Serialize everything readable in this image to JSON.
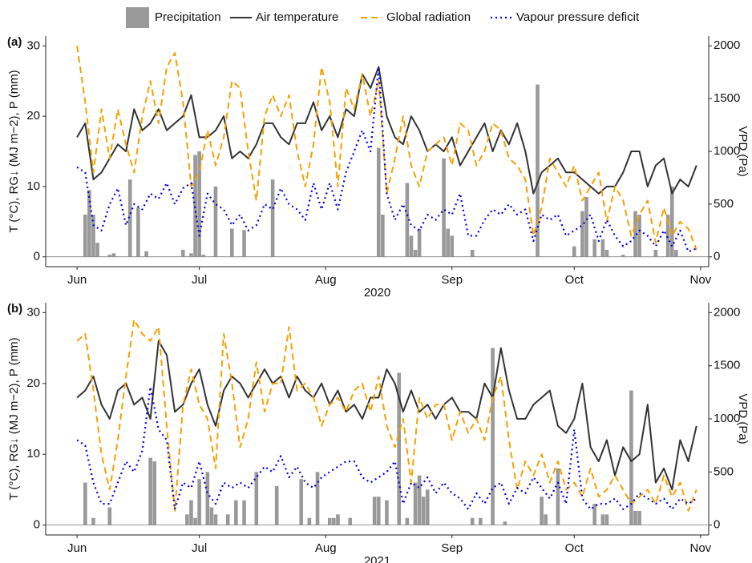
{
  "legend_source": 0,
  "chart_data": [
    {
      "type": "line",
      "panel_label": "(a)",
      "xlabel": "2020",
      "ylabel": "T (°C), RG↓ (MJ m−2), P (mm)",
      "y2label": "VPD (Pa)",
      "xlim": [
        -7.7,
        155
      ],
      "xticks": [
        {
          "value": 0,
          "label": "Jun"
        },
        {
          "value": 30,
          "label": "Jul"
        },
        {
          "value": 61,
          "label": "Aug"
        },
        {
          "value": 92,
          "label": "Sep"
        },
        {
          "value": 122,
          "label": "Oct"
        },
        {
          "value": 153,
          "label": "Nov"
        }
      ],
      "ylim": [
        -1.4,
        31.4
      ],
      "yticks": [
        0,
        10,
        20,
        30
      ],
      "y2lim": [
        -93,
        2093
      ],
      "y2ticks": [
        0,
        500,
        1000,
        1500,
        2000
      ],
      "x": [
        0,
        2,
        4,
        6,
        8,
        10,
        12,
        14,
        16,
        18,
        20,
        22,
        24,
        26,
        28,
        30,
        32,
        34,
        36,
        38,
        40,
        42,
        44,
        46,
        48,
        50,
        52,
        54,
        56,
        58,
        60,
        62,
        64,
        66,
        68,
        70,
        72,
        74,
        76,
        78,
        80,
        82,
        84,
        86,
        88,
        90,
        92,
        94,
        96,
        98,
        100,
        102,
        104,
        106,
        108,
        110,
        112,
        114,
        116,
        118,
        120,
        122,
        124,
        126,
        128,
        130,
        132,
        134,
        136,
        138,
        140,
        142,
        144,
        146,
        148,
        150,
        152
      ],
      "series": [
        {
          "name": "Precipitation",
          "type": "bar",
          "color": "#999999",
          "x": [
            2,
            3,
            4,
            5,
            8,
            9,
            13,
            15,
            17,
            26,
            28,
            29,
            30,
            31,
            34,
            38,
            41,
            48,
            74,
            75,
            81,
            82,
            83,
            84,
            90,
            91,
            92,
            97,
            113,
            122,
            124,
            125,
            127,
            129,
            130,
            134,
            137,
            138,
            142,
            145,
            146,
            147
          ],
          "values": [
            6,
            9.5,
            6,
            2,
            0.3,
            0.5,
            11,
            7,
            0.8,
            1,
            0.5,
            14.5,
            15,
            0.3,
            10,
            4,
            3.8,
            11,
            15.5,
            6,
            10.5,
            3,
            1,
            4,
            14,
            4,
            3,
            1,
            24.5,
            1.5,
            6.5,
            8.5,
            2.5,
            2.5,
            1,
            0.3,
            6.5,
            6,
            1,
            6,
            10,
            1
          ]
        },
        {
          "name": "Air temperature",
          "color": "#333333",
          "dash": "solid",
          "values": [
            17,
            19,
            11,
            12,
            14,
            16,
            15,
            21,
            18,
            19,
            21,
            18,
            19,
            20,
            23,
            17,
            17,
            18,
            20,
            14,
            15,
            14,
            16,
            19,
            19,
            17,
            16,
            19,
            19,
            22,
            18,
            20,
            17,
            21,
            20,
            26,
            24,
            27,
            20,
            17,
            16,
            20,
            18,
            15,
            16,
            15,
            17,
            13,
            15,
            17,
            19,
            15,
            18,
            16,
            19,
            15,
            9,
            12,
            13,
            14,
            12,
            12,
            11,
            10,
            9,
            10,
            10,
            12,
            15,
            15,
            10,
            13,
            14,
            9,
            11,
            10,
            13
          ]
        },
        {
          "name": "Global radiation",
          "color": "#f5a100",
          "dash": "dashed",
          "values": [
            30,
            22,
            12,
            21,
            14,
            21,
            16,
            12,
            20,
            25,
            19,
            27,
            29,
            22,
            10,
            12,
            18,
            13,
            17,
            25,
            24,
            15,
            8,
            20,
            23,
            20,
            23,
            15,
            10,
            16,
            27,
            22,
            10,
            24,
            21,
            26,
            20,
            25,
            9,
            14,
            20,
            13,
            10,
            15,
            16,
            17,
            13,
            19,
            18,
            13,
            15,
            19,
            18,
            14,
            13,
            11,
            3,
            7,
            14,
            12,
            10,
            13,
            8,
            10,
            12,
            5,
            10,
            8,
            3,
            6,
            8,
            2,
            7,
            3,
            5,
            4,
            1
          ]
        },
        {
          "name": "Vapour pressure deficit",
          "color": "#0000dd",
          "dash": "dotted",
          "axis": "y2",
          "values": [
            850,
            800,
            300,
            250,
            500,
            650,
            300,
            500,
            450,
            600,
            550,
            700,
            500,
            650,
            700,
            200,
            600,
            500,
            450,
            300,
            400,
            250,
            300,
            500,
            450,
            650,
            500,
            450,
            350,
            700,
            450,
            700,
            450,
            800,
            1000,
            1200,
            1000,
            1800,
            600,
            350,
            500,
            300,
            250,
            400,
            350,
            450,
            400,
            600,
            200,
            200,
            350,
            450,
            400,
            500,
            400,
            450,
            150,
            400,
            350,
            400,
            200,
            250,
            300,
            400,
            150,
            350,
            200,
            100,
            150,
            250,
            200,
            100,
            250,
            100,
            250,
            50,
            80
          ]
        }
      ]
    },
    {
      "type": "line",
      "panel_label": "(b)",
      "xlabel": "2021",
      "ylabel": "T (°C), RG↓ (MJ m−2), P (mm)",
      "y2label": "VPD (Pa)",
      "xlim": [
        -7.7,
        155
      ],
      "xticks": [
        {
          "value": 0,
          "label": "Jun"
        },
        {
          "value": 30,
          "label": "Jul"
        },
        {
          "value": 61,
          "label": "Aug"
        },
        {
          "value": 92,
          "label": "Sep"
        },
        {
          "value": 122,
          "label": "Oct"
        },
        {
          "value": 153,
          "label": "Nov"
        }
      ],
      "ylim": [
        -1.4,
        31.4
      ],
      "yticks": [
        0,
        10,
        20,
        30
      ],
      "y2lim": [
        -93,
        2093
      ],
      "y2ticks": [
        0,
        500,
        1000,
        1500,
        2000
      ],
      "x": [
        0,
        2,
        4,
        6,
        8,
        10,
        12,
        14,
        16,
        18,
        20,
        22,
        24,
        26,
        28,
        30,
        32,
        34,
        36,
        38,
        40,
        42,
        44,
        46,
        48,
        50,
        52,
        54,
        56,
        58,
        60,
        62,
        64,
        66,
        68,
        70,
        72,
        74,
        76,
        78,
        80,
        82,
        84,
        86,
        88,
        90,
        92,
        94,
        96,
        98,
        100,
        102,
        104,
        106,
        108,
        110,
        112,
        114,
        116,
        118,
        120,
        122,
        124,
        126,
        128,
        130,
        132,
        134,
        136,
        138,
        140,
        142,
        144,
        146,
        148,
        150,
        152
      ],
      "series": [
        {
          "type": "bar",
          "color": "#999999",
          "x": [
            2,
            4,
            8,
            18,
            19,
            27,
            28,
            29,
            30,
            32,
            33,
            34,
            37,
            39,
            41,
            44,
            49,
            55,
            57,
            59,
            62,
            63,
            64,
            67,
            73,
            74,
            76,
            79,
            81,
            83,
            84,
            85,
            86,
            97,
            99,
            102,
            105,
            114,
            115,
            118,
            127,
            129,
            130,
            136,
            137,
            138
          ],
          "values": [
            6,
            1,
            2.5,
            9.5,
            9,
            1.5,
            3.5,
            1,
            6.5,
            7.5,
            2.5,
            1.5,
            1.5,
            3.5,
            3.5,
            7.5,
            5.5,
            6.5,
            1,
            7.5,
            1,
            1,
            1.5,
            1,
            4,
            4,
            3.5,
            21.5,
            1,
            6,
            7,
            4,
            5,
            1,
            1,
            25,
            0.5,
            4,
            1.5,
            8,
            3,
            1.5,
            1.5,
            19,
            2,
            2
          ]
        },
        {
          "color": "#333333",
          "dash": "solid",
          "values": [
            18,
            19,
            21,
            17,
            15,
            19,
            20,
            17,
            18,
            15,
            26,
            24,
            16,
            17,
            20,
            22,
            17,
            14,
            19,
            21,
            20,
            18,
            20,
            22,
            20,
            21,
            18,
            21,
            19,
            18,
            20,
            17,
            19,
            16,
            17,
            15,
            18,
            18,
            22,
            20,
            16,
            19,
            16,
            17,
            15,
            17,
            18,
            16,
            16,
            15,
            20,
            18,
            25,
            19,
            15,
            15,
            17,
            18,
            19,
            14,
            13,
            15,
            20,
            11,
            9,
            12,
            7,
            11,
            9,
            10,
            17,
            6,
            8,
            5,
            12,
            9,
            14
          ]
        },
        {
          "color": "#f5a100",
          "dash": "dashed",
          "values": [
            26,
            27,
            19,
            10,
            5,
            12,
            21,
            29,
            27,
            26,
            28,
            14,
            2,
            17,
            22,
            17,
            15,
            8,
            27,
            20,
            11,
            15,
            23,
            16,
            20,
            20,
            28,
            19,
            20,
            18,
            14,
            17,
            18,
            16,
            19,
            20,
            16,
            21,
            14,
            11,
            15,
            6,
            18,
            15,
            17,
            17,
            12,
            16,
            13,
            15,
            12,
            18,
            21,
            12,
            5,
            9,
            7,
            10,
            6,
            9,
            5,
            6,
            4,
            8,
            4,
            5,
            7,
            5,
            3,
            4,
            5,
            3,
            7,
            4,
            6,
            2,
            5
          ]
        },
        {
          "color": "#0000dd",
          "dash": "dotted",
          "axis": "y2",
          "values": [
            800,
            750,
            400,
            200,
            200,
            400,
            600,
            500,
            700,
            1300,
            900,
            800,
            150,
            400,
            350,
            600,
            300,
            200,
            400,
            350,
            400,
            350,
            450,
            550,
            500,
            650,
            450,
            550,
            400,
            350,
            450,
            500,
            550,
            600,
            600,
            450,
            400,
            450,
            500,
            600,
            200,
            400,
            350,
            450,
            300,
            400,
            300,
            250,
            150,
            300,
            200,
            350,
            400,
            200,
            350,
            300,
            450,
            350,
            250,
            400,
            200,
            900,
            250,
            150,
            200,
            200,
            250,
            150,
            200,
            300,
            250,
            200,
            250,
            150,
            250,
            200,
            250
          ]
        }
      ]
    }
  ]
}
